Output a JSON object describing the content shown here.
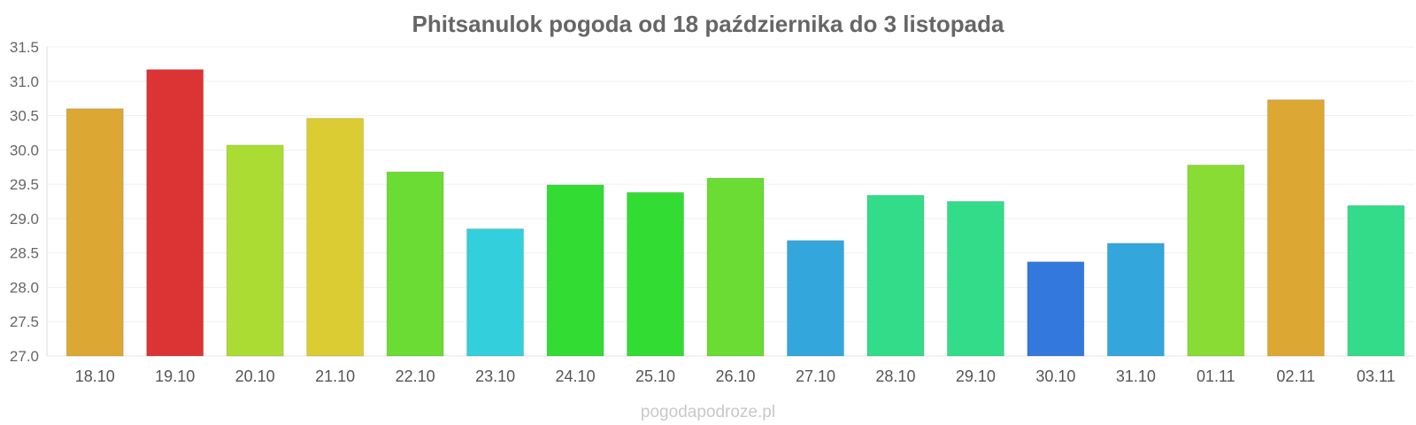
{
  "chart_data": {
    "type": "bar",
    "title": "Phitsanulok pogoda od 18 października do 3 listopada",
    "categories": [
      "18.10",
      "19.10",
      "20.10",
      "21.10",
      "22.10",
      "23.10",
      "24.10",
      "25.10",
      "26.10",
      "27.10",
      "28.10",
      "29.10",
      "30.10",
      "31.10",
      "01.11",
      "02.11",
      "03.11"
    ],
    "values": [
      30.6,
      31.17,
      30.07,
      30.46,
      29.68,
      28.85,
      29.49,
      29.38,
      29.59,
      28.68,
      29.34,
      29.25,
      28.37,
      28.64,
      29.78,
      30.73,
      29.19
    ],
    "colors": [
      "#dca833",
      "#dc3434",
      "#abdc33",
      "#dccc33",
      "#6adc33",
      "#33cfdc",
      "#33dc33",
      "#33dc33",
      "#6adc33",
      "#33a6dc",
      "#33dc89",
      "#33dc89",
      "#3378dc",
      "#33a6dc",
      "#89dc33",
      "#dca833",
      "#33dc89"
    ],
    "ylim": [
      27.0,
      31.5
    ],
    "yticks": [
      "27.0",
      "27.5",
      "28.0",
      "28.5",
      "29.0",
      "29.5",
      "30.0",
      "30.5",
      "31.0",
      "31.5"
    ],
    "grid": true,
    "xlabel": "",
    "ylabel": ""
  },
  "footer": "pogodapodroze.pl"
}
